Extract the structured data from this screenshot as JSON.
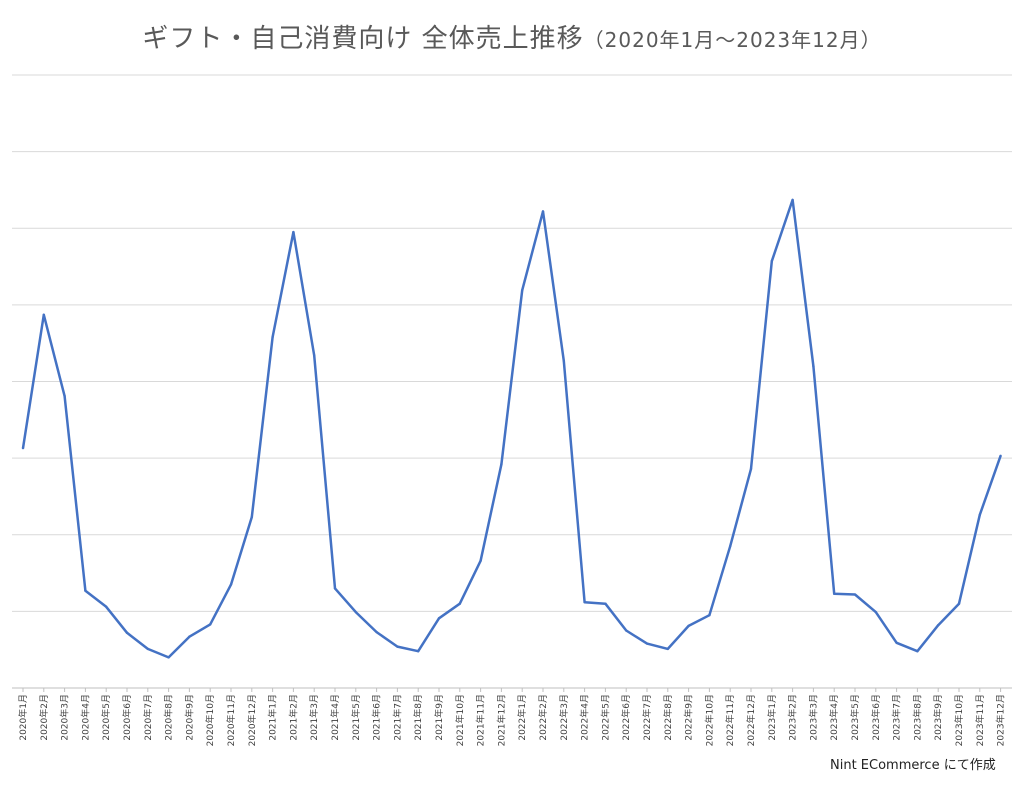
{
  "chart_data": {
    "type": "line",
    "title": "ギフト・自己消費向け 全体売上推移",
    "subtitle": "（2020年1月～2023年12月）",
    "xlabel": "",
    "ylabel": "",
    "y_tick_labels": "hidden",
    "grid": true,
    "legend": "none",
    "categories": [
      "2020年1月",
      "2020年2月",
      "2020年3月",
      "2020年4月",
      "2020年5月",
      "2020年6月",
      "2020年7月",
      "2020年8月",
      "2020年9月",
      "2020年10月",
      "2020年11月",
      "2020年12月",
      "2021年1月",
      "2021年2月",
      "2021年3月",
      "2021年4月",
      "2021年5月",
      "2021年6月",
      "2021年7月",
      "2021年8月",
      "2021年9月",
      "2021年10月",
      "2021年11月",
      "2021年12月",
      "2022年1月",
      "2022年2月",
      "2022年3月",
      "2022年4月",
      "2022年5月",
      "2022年6月",
      "2022年7月",
      "2022年8月",
      "2022年9月",
      "2022年10月",
      "2022年11月",
      "2022年12月",
      "2023年1月",
      "2023年2月",
      "2023年3月",
      "2023年4月",
      "2023年5月",
      "2023年6月",
      "2023年7月",
      "2023年8月",
      "2023年9月",
      "2023年10月",
      "2023年11月",
      "2023年12月"
    ],
    "values": [
      3.13,
      4.87,
      3.81,
      1.27,
      1.06,
      0.72,
      0.51,
      0.4,
      0.67,
      0.83,
      1.35,
      2.23,
      4.58,
      5.95,
      4.34,
      1.3,
      0.99,
      0.73,
      0.54,
      0.48,
      0.91,
      1.1,
      1.66,
      2.92,
      5.19,
      6.22,
      4.27,
      1.12,
      1.1,
      0.75,
      0.58,
      0.51,
      0.81,
      0.95,
      1.85,
      2.86,
      5.57,
      6.37,
      4.2,
      1.23,
      1.22,
      0.99,
      0.59,
      0.48,
      0.82,
      1.1,
      2.26,
      3.03
    ],
    "ylim": [
      0,
      8
    ],
    "line_color": "#4472C4",
    "grid_color": "#d9d9d9"
  },
  "footer": {
    "credit": "Nint ECommerce にて作成"
  }
}
